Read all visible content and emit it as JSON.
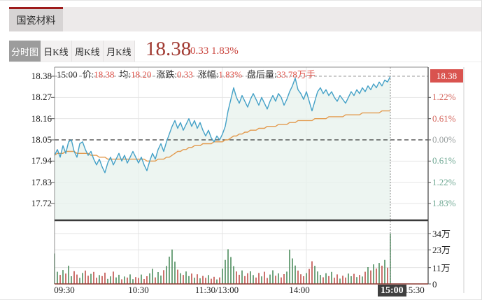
{
  "stock_tab": {
    "name": "国瓷材料"
  },
  "chart_tabs": {
    "items": [
      {
        "label": "分时图",
        "active": true
      },
      {
        "label": "日K线",
        "active": false
      },
      {
        "label": "周K线",
        "active": false
      },
      {
        "label": "月K线",
        "active": false
      }
    ]
  },
  "quote": {
    "price": "18.38",
    "change": "0.33",
    "change_pct": "1.83%"
  },
  "info_bar": {
    "time": "15:00",
    "segments": [
      {
        "label": "价:",
        "value": "18.38"
      },
      {
        "label": "均:",
        "value": "18.20"
      },
      {
        "label": "涨跌:",
        "value": "0.33"
      },
      {
        "label": "涨幅:",
        "value": "1.83%"
      },
      {
        "label": "盘后量:",
        "value": "33.78万手"
      }
    ]
  },
  "colors": {
    "accent_red": "#9e1c1c",
    "price_text": "#a13a32",
    "badge_bg": "#d9534f",
    "price_line": "#44a1c7",
    "avg_line": "#e39b4f",
    "area_fill": "#e9f3ee",
    "vol_up": "#4e8d5f",
    "vol_down": "#bf4f4a",
    "pct_up": "#d5675e",
    "pct_down": "#6fa893",
    "grid": "#e4e4e4",
    "baseline_red": "#8b3a32",
    "time_badge_bg": "#3f3f3f"
  },
  "chart_data": {
    "type": "line",
    "title": "国瓷材料 分时图",
    "prev_close": 18.05,
    "current_price_label": "18.38",
    "average_price": 18.2,
    "left_price_ticks": [
      "18.38",
      "18.27",
      "18.16",
      "18.05",
      "17.94",
      "17.83",
      "17.72"
    ],
    "left_price_values": [
      18.38,
      18.27,
      18.16,
      18.05,
      17.94,
      17.83,
      17.72
    ],
    "right_pct_ticks": [
      {
        "label": "1.22%",
        "dir": "up"
      },
      {
        "label": "0.61%",
        "dir": "up"
      },
      {
        "label": "0.00%",
        "dir": "zero"
      },
      {
        "label": "0.61%",
        "dir": "down"
      },
      {
        "label": "1.22%",
        "dir": "down"
      },
      {
        "label": "1.83%",
        "dir": "down"
      }
    ],
    "right_pct_values": [
      18.27,
      18.16,
      18.05,
      17.94,
      17.83,
      17.72
    ],
    "volume_ticks": [
      {
        "label": "34万",
        "value": 34
      },
      {
        "label": "23万",
        "value": 23
      },
      {
        "label": "11万",
        "value": 11
      },
      {
        "label": "0",
        "value": 0
      }
    ],
    "x_ticks": [
      "09:30",
      "10:30",
      "11:30/13:00",
      "14:00",
      "15:00",
      "15:30"
    ],
    "crosshair": {
      "time": "15:00",
      "price": 18.38
    },
    "after_hours_volume_wan": 33.78,
    "minutes_per_point": 2,
    "price": [
      17.97,
      18.0,
      17.96,
      18.02,
      17.98,
      18.04,
      18.05,
      17.99,
      17.96,
      18.03,
      18.04,
      18.0,
      17.97,
      17.99,
      17.95,
      17.92,
      17.95,
      17.91,
      17.88,
      17.93,
      17.96,
      17.92,
      17.95,
      17.98,
      17.94,
      17.97,
      17.93,
      17.96,
      17.99,
      17.96,
      17.93,
      17.96,
      17.92,
      17.89,
      17.94,
      17.98,
      17.95,
      18.0,
      18.03,
      17.99,
      18.04,
      18.08,
      18.12,
      18.15,
      18.11,
      18.14,
      18.1,
      18.13,
      18.16,
      18.12,
      18.15,
      18.11,
      18.14,
      18.1,
      18.07,
      18.1,
      18.06,
      18.04,
      18.07,
      18.05,
      18.08,
      18.12,
      18.2,
      18.26,
      18.32,
      18.27,
      18.24,
      18.28,
      18.25,
      18.22,
      18.26,
      18.29,
      18.26,
      18.23,
      18.27,
      18.24,
      18.21,
      18.25,
      18.28,
      18.25,
      18.29,
      18.27,
      18.23,
      18.26,
      18.3,
      18.33,
      18.37,
      18.31,
      18.29,
      18.26,
      18.3,
      18.25,
      18.2,
      18.25,
      18.3,
      18.32,
      18.29,
      18.31,
      18.28,
      18.3,
      18.27,
      18.25,
      18.28,
      18.26,
      18.24,
      18.27,
      18.3,
      18.28,
      18.31,
      18.29,
      18.32,
      18.3,
      18.33,
      18.31,
      18.34,
      18.32,
      18.35,
      18.33,
      18.36,
      18.35,
      18.38
    ],
    "avg": [
      17.97,
      17.98,
      17.98,
      17.98,
      17.99,
      17.99,
      17.99,
      17.99,
      17.98,
      17.98,
      17.98,
      17.98,
      17.98,
      17.97,
      17.97,
      17.97,
      17.96,
      17.96,
      17.96,
      17.95,
      17.95,
      17.95,
      17.95,
      17.95,
      17.95,
      17.95,
      17.95,
      17.95,
      17.95,
      17.95,
      17.95,
      17.95,
      17.95,
      17.94,
      17.94,
      17.94,
      17.94,
      17.95,
      17.95,
      17.95,
      17.96,
      17.96,
      17.97,
      17.98,
      17.99,
      17.99,
      18.0,
      18.0,
      18.01,
      18.01,
      18.02,
      18.02,
      18.02,
      18.03,
      18.03,
      18.03,
      18.03,
      18.04,
      18.04,
      18.04,
      18.04,
      18.05,
      18.05,
      18.06,
      18.07,
      18.07,
      18.08,
      18.08,
      18.09,
      18.09,
      18.1,
      18.1,
      18.1,
      18.11,
      18.11,
      18.11,
      18.12,
      18.12,
      18.12,
      18.12,
      18.13,
      18.13,
      18.13,
      18.13,
      18.14,
      18.14,
      18.14,
      18.15,
      18.15,
      18.15,
      18.15,
      18.15,
      18.15,
      18.16,
      18.16,
      18.16,
      18.16,
      18.16,
      18.17,
      18.17,
      18.17,
      18.17,
      18.17,
      18.17,
      18.18,
      18.18,
      18.18,
      18.18,
      18.18,
      18.18,
      18.19,
      18.19,
      18.19,
      18.19,
      18.19,
      18.19,
      18.19,
      18.2,
      18.2,
      18.2,
      18.2
    ],
    "volume_wan": [
      20.5,
      8.2,
      6.1,
      9.4,
      7.0,
      12.3,
      5.2,
      8.6,
      6.3,
      4.1,
      7.4,
      9.0,
      5.5,
      6.8,
      8.1,
      4.2,
      6.0,
      5.3,
      7.6,
      3.4,
      5.1,
      8.3,
      4.4,
      6.2,
      3.1,
      5.0,
      4.3,
      6.4,
      3.2,
      4.6,
      4.0,
      6.3,
      3.3,
      5.2,
      7.1,
      10.2,
      4.4,
      8.0,
      5.6,
      9.3,
      12.1,
      18.4,
      23.2,
      15.0,
      9.6,
      7.2,
      6.1,
      8.4,
      5.3,
      7.0,
      4.2,
      6.5,
      3.8,
      5.4,
      4.1,
      6.0,
      3.5,
      4.8,
      3.0,
      4.4,
      10.3,
      16.2,
      23.4,
      18.1,
      12.0,
      8.4,
      6.2,
      9.1,
      5.3,
      7.2,
      8.5,
      6.0,
      4.3,
      7.4,
      5.1,
      8.2,
      4.0,
      6.3,
      9.2,
      5.5,
      7.1,
      4.4,
      6.6,
      8.3,
      23.1,
      17.2,
      12.4,
      9.0,
      6.5,
      5.2,
      7.3,
      10.1,
      15.3,
      12.2,
      8.4,
      6.1,
      4.5,
      7.2,
      5.3,
      8.1,
      4.2,
      6.4,
      3.6,
      5.5,
      4.3,
      7.0,
      5.2,
      6.8,
      4.6,
      6.1,
      5.0,
      8.2,
      11.3,
      9.1,
      13.2,
      10.4,
      14.1,
      12.3,
      16.2,
      11.0,
      33.78
    ]
  }
}
